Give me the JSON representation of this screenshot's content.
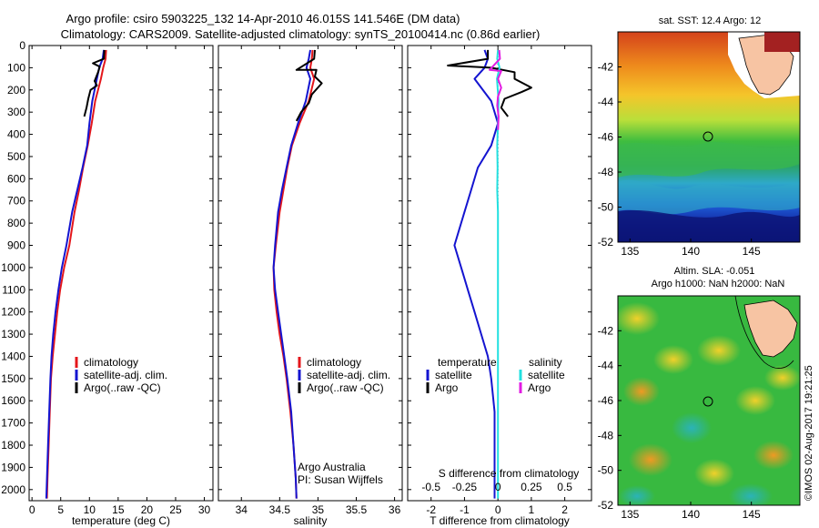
{
  "header": {
    "title_line1": "Argo profile: csiro 5903225_132 14-Apr-2010 46.015S 141.546E (DM data)",
    "title_line2": "Climatology: CARS2009. Satellite-adjusted climatology: synTS_20100414.nc (0.86d earlier)"
  },
  "colors": {
    "climatology": "#e4161b",
    "satellite": "#1414d0",
    "argo": "#000000",
    "salinity_satellite": "#22e0e0",
    "salinity_argo": "#e21ae2"
  },
  "chart_data": [
    {
      "type": "line",
      "id": "temperature_profile",
      "xlabel": "temperature (deg C)",
      "xlim": [
        -0.5,
        31.5
      ],
      "xticks": [
        0,
        5,
        10,
        15,
        20,
        25,
        30
      ],
      "ylim": [
        0,
        2050
      ],
      "yticks": [
        0,
        100,
        200,
        300,
        400,
        500,
        600,
        700,
        800,
        900,
        1000,
        1100,
        1200,
        1300,
        1400,
        1500,
        1600,
        1700,
        1800,
        1900,
        2000
      ],
      "y_reversed": true,
      "legend": [
        "climatology",
        "satellite-adj. clim.",
        "Argo(..raw -QC)"
      ],
      "legend_position": "lower-center",
      "series": [
        {
          "name": "climatology",
          "color_key": "climatology",
          "x": [
            12.9,
            12.8,
            12.4,
            12.0,
            11.0,
            10.4,
            9.7,
            8.9,
            8.2,
            7.4,
            6.5,
            5.6,
            4.9,
            4.4,
            4.0,
            3.6,
            3.3,
            3.1,
            2.9,
            2.7,
            2.6
          ],
          "y": [
            20,
            60,
            100,
            150,
            250,
            350,
            450,
            550,
            650,
            750,
            900,
            1000,
            1100,
            1200,
            1300,
            1400,
            1500,
            1650,
            1800,
            1950,
            2040
          ]
        },
        {
          "name": "satellite-adj. clim.",
          "color_key": "satellite",
          "x": [
            12.5,
            12.3,
            11.7,
            11.3,
            10.5,
            10.0,
            9.6,
            8.8,
            7.9,
            7.0,
            6.0,
            5.2,
            4.6,
            4.1,
            3.7,
            3.4,
            3.2,
            3.0,
            2.8,
            2.6,
            2.5
          ],
          "y": [
            20,
            60,
            100,
            150,
            250,
            350,
            450,
            550,
            650,
            750,
            900,
            1000,
            1100,
            1200,
            1300,
            1400,
            1500,
            1650,
            1800,
            1950,
            2040
          ]
        },
        {
          "name": "Argo(..raw -QC)",
          "color_key": "argo",
          "x": [
            12.6,
            12.5,
            10.6,
            11.8,
            11.5,
            10.9,
            11.3,
            10.2,
            9.8,
            9.5,
            9.1
          ],
          "y": [
            20,
            60,
            80,
            95,
            120,
            160,
            180,
            200,
            240,
            280,
            320
          ]
        }
      ]
    },
    {
      "type": "line",
      "id": "salinity_profile",
      "xlabel": "salinity",
      "xlim": [
        33.7,
        36.1
      ],
      "xticks": [
        34,
        34.5,
        35,
        35.5,
        36
      ],
      "xticklabels": [
        "34",
        "34.5",
        "35",
        "35.5",
        "36"
      ],
      "ylim": [
        0,
        2050
      ],
      "y_reversed": true,
      "legend": [
        "climatology",
        "satellite-adj. clim.",
        "Argo(..raw -QC)"
      ],
      "legend_position": "lower-center",
      "annotation": [
        "Argo Australia",
        "PI: Susan Wijffels"
      ],
      "series": [
        {
          "name": "climatology",
          "color_key": "climatology",
          "x": [
            34.93,
            34.92,
            34.9,
            34.95,
            34.88,
            34.76,
            34.66,
            34.6,
            34.55,
            34.5,
            34.45,
            34.42,
            34.43,
            34.46,
            34.5,
            34.55,
            34.59,
            34.64,
            34.68,
            34.71,
            34.72
          ],
          "y": [
            20,
            60,
            100,
            150,
            250,
            350,
            450,
            550,
            650,
            750,
            900,
            1000,
            1100,
            1200,
            1300,
            1400,
            1500,
            1650,
            1800,
            1950,
            2040
          ]
        },
        {
          "name": "satellite-adj. clim.",
          "color_key": "satellite",
          "x": [
            34.9,
            34.88,
            34.85,
            34.9,
            34.84,
            34.74,
            34.65,
            34.59,
            34.53,
            34.48,
            34.44,
            34.42,
            34.44,
            34.48,
            34.52,
            34.56,
            34.6,
            34.65,
            34.68,
            34.71,
            34.72
          ],
          "y": [
            20,
            60,
            100,
            150,
            250,
            350,
            450,
            550,
            650,
            750,
            900,
            1000,
            1100,
            1200,
            1300,
            1400,
            1500,
            1650,
            1800,
            1950,
            2040
          ]
        },
        {
          "name": "Argo(..raw -QC)",
          "color_key": "argo",
          "x": [
            34.96,
            34.95,
            34.72,
            34.98,
            34.96,
            35.05,
            34.92,
            34.88,
            34.78,
            34.72
          ],
          "y": [
            20,
            60,
            110,
            110,
            140,
            170,
            220,
            260,
            300,
            340
          ]
        }
      ]
    },
    {
      "type": "line",
      "id": "difference_profile",
      "xlabel": "T difference from climatology",
      "x2label": "S difference from climatology",
      "xlim": [
        -2.7,
        2.8
      ],
      "xticks": [
        -2,
        -1,
        0,
        1,
        2
      ],
      "x2lim": [
        -0.675,
        0.7
      ],
      "x2ticks": [
        -0.5,
        -0.25,
        0,
        0.25,
        0.5
      ],
      "ylim": [
        0,
        2050
      ],
      "y_reversed": true,
      "legend": {
        "temperature_header": "temperature",
        "salinity_header": "salinity",
        "entries": [
          "satellite",
          "Argo",
          "satellite",
          "Argo"
        ]
      },
      "series": [
        {
          "name": "satellite",
          "group": "temperature",
          "color_key": "satellite",
          "x": [
            -0.4,
            -0.3,
            -0.4,
            -0.7,
            -0.2,
            0.0,
            -0.2,
            -0.6,
            -0.8,
            -1.0,
            -1.3,
            -1.1,
            -0.9,
            -0.7,
            -0.5,
            -0.3,
            -0.2,
            -0.1,
            -0.1,
            -0.1,
            -0.1
          ],
          "y": [
            20,
            60,
            100,
            150,
            250,
            350,
            450,
            550,
            650,
            750,
            900,
            1000,
            1100,
            1200,
            1300,
            1400,
            1500,
            1650,
            1800,
            1950,
            2040
          ]
        },
        {
          "name": "Argo",
          "group": "temperature",
          "color_key": "argo",
          "x": [
            -0.3,
            -0.3,
            -1.5,
            -0.2,
            0.5,
            0.5,
            1.0,
            0.7,
            0.2,
            0.1,
            0.3
          ],
          "y": [
            20,
            60,
            90,
            100,
            120,
            150,
            190,
            210,
            240,
            280,
            320
          ]
        },
        {
          "name": "satellite",
          "group": "salinity",
          "color_key": "salinity_satellite",
          "x": [
            0.0,
            -0.02,
            0.05,
            -0.03,
            0.02,
            0.0,
            -0.02,
            -0.01,
            -0.02,
            0.0,
            0.0,
            0.0,
            0.0,
            0.0,
            0.0,
            0.0,
            0.0,
            0.0,
            0.0,
            0.0,
            0.0
          ],
          "y": [
            20,
            60,
            100,
            150,
            250,
            350,
            450,
            550,
            650,
            750,
            900,
            1000,
            1100,
            1200,
            1300,
            1400,
            1500,
            1650,
            1800,
            1950,
            2040
          ]
        },
        {
          "name": "Argo",
          "group": "salinity",
          "color_key": "salinity_argo",
          "x": [
            0.04,
            0.06,
            -0.25,
            0.1,
            0.0,
            0.1,
            0.0,
            -0.02,
            0.02,
            0.0
          ],
          "y": [
            20,
            60,
            110,
            115,
            150,
            190,
            230,
            270,
            320,
            380
          ]
        }
      ]
    },
    {
      "type": "heatmap",
      "id": "sst_map",
      "title": "sat. SST: 12.4 Argo: 12",
      "xlim": [
        134,
        149
      ],
      "xticks": [
        135,
        140,
        145
      ],
      "ylim": [
        -52,
        -40
      ],
      "yticks": [
        -42,
        -44,
        -46,
        -48,
        -50,
        -52
      ],
      "marker": {
        "lon": 141.546,
        "lat": -46.015
      }
    },
    {
      "type": "heatmap",
      "id": "sla_map",
      "title_line1": "Altim. SLA: -0.051",
      "title_line2": "Argo h1000: NaN h2000: NaN",
      "xlim": [
        134,
        149
      ],
      "xticks": [
        135,
        140,
        145
      ],
      "ylim": [
        -52,
        -40
      ],
      "yticks": [
        -42,
        -44,
        -46,
        -48,
        -50,
        -52
      ],
      "marker": {
        "lon": 141.546,
        "lat": -46.015
      }
    }
  ],
  "footer": {
    "stamp": "©IMOS 02-Aug-2017 19:21:25"
  }
}
